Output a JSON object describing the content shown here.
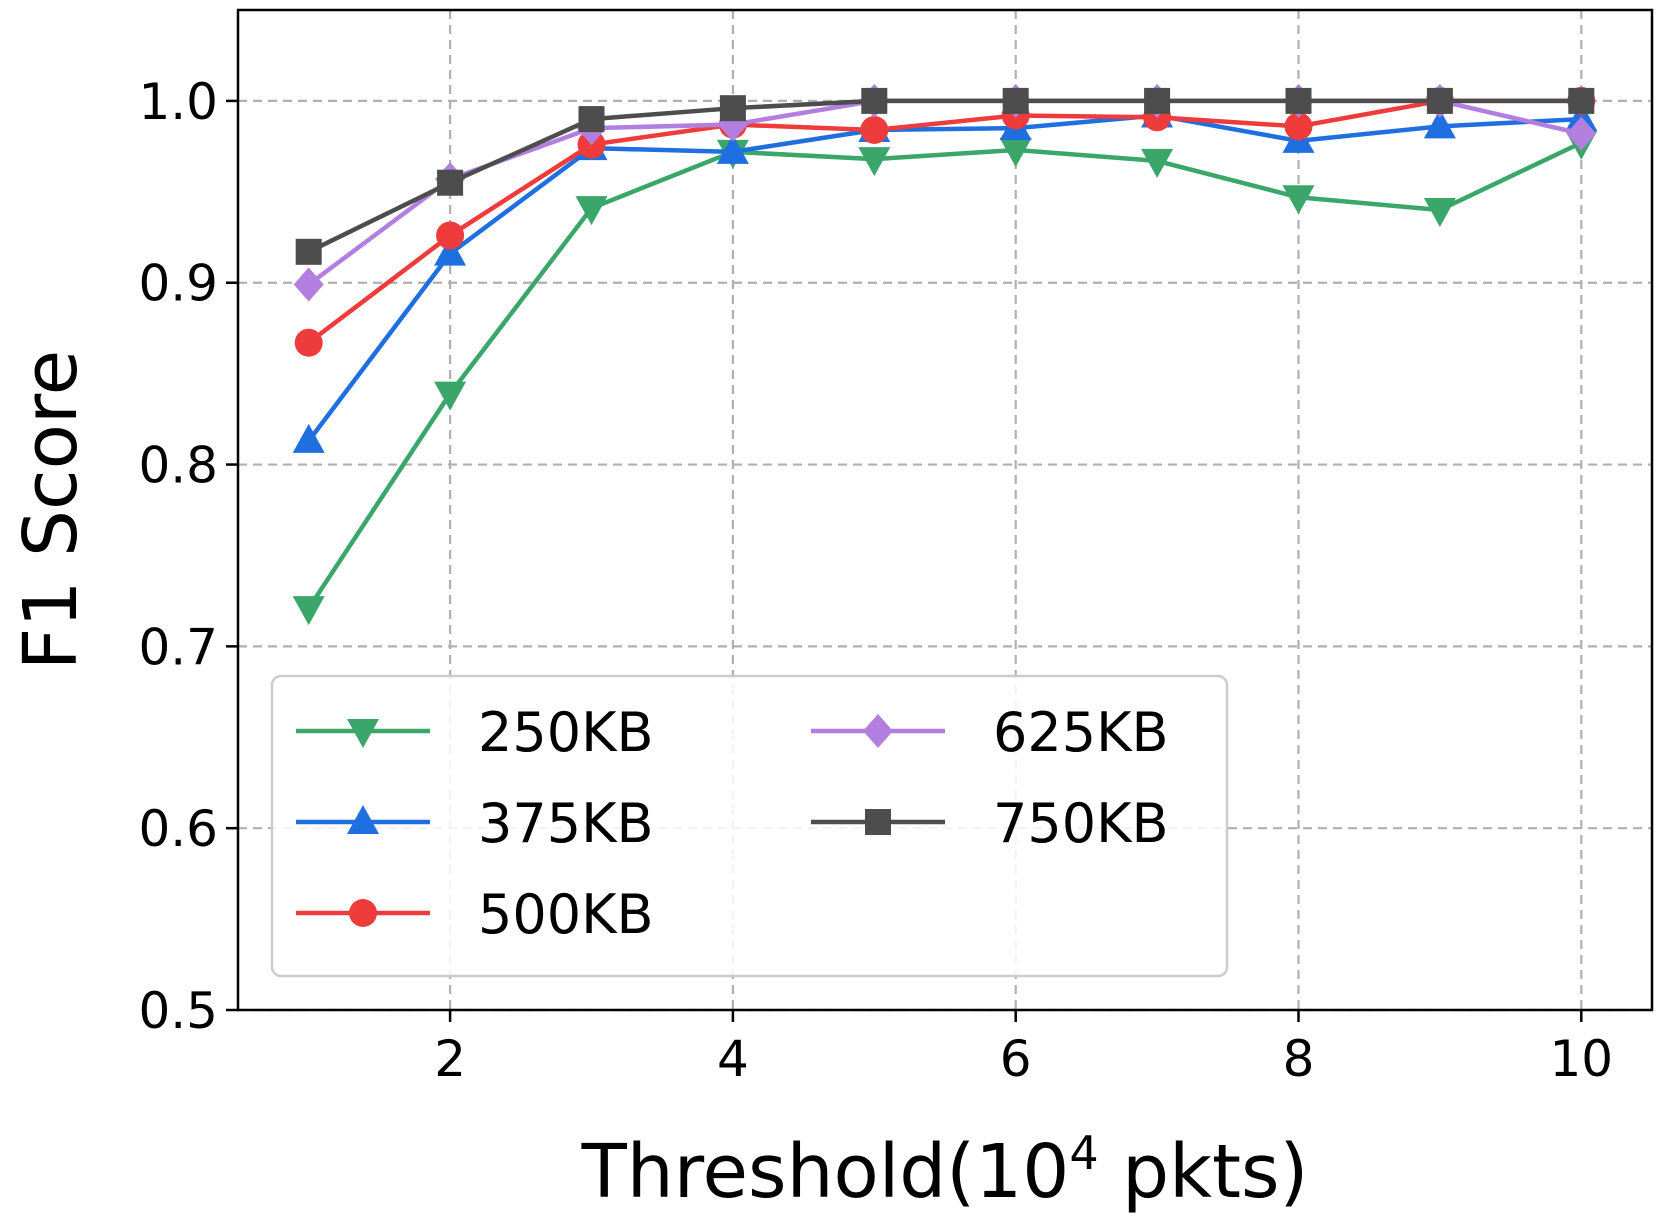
{
  "chart_data": {
    "type": "line",
    "title": "",
    "xlabel": "Threshold(10",
    "xlabel_superscript": "4",
    "xlabel_suffix": " pkts)",
    "ylabel": "F1 Score",
    "xlim": [
      0.5,
      10.5
    ],
    "ylim": [
      0.5,
      1.05
    ],
    "x_ticks": [
      2,
      4,
      6,
      8,
      10
    ],
    "x_tick_labels": [
      "2",
      "4",
      "6",
      "8",
      "10"
    ],
    "y_ticks": [
      0.5,
      0.6,
      0.7,
      0.8,
      0.9,
      1.0
    ],
    "y_tick_labels": [
      "0.5",
      "0.6",
      "0.7",
      "0.8",
      "0.9",
      "1.0"
    ],
    "grid": true,
    "legend_position": "lower-left",
    "legend_columns": 2,
    "x": [
      1,
      2,
      3,
      4,
      5,
      6,
      7,
      8,
      9,
      10
    ],
    "series": [
      {
        "name": "250KB",
        "color": "#3aa66a",
        "marker": "triangle-down",
        "values": [
          0.721,
          0.839,
          0.941,
          0.972,
          0.968,
          0.973,
          0.967,
          0.947,
          0.94,
          0.977
        ]
      },
      {
        "name": "375KB",
        "color": "#1f6fe0",
        "marker": "triangle-up",
        "values": [
          0.813,
          0.916,
          0.974,
          0.972,
          0.984,
          0.985,
          0.992,
          0.978,
          0.986,
          0.99
        ]
      },
      {
        "name": "500KB",
        "color": "#ee3b3b",
        "marker": "circle",
        "values": [
          0.867,
          0.926,
          0.976,
          0.987,
          0.984,
          0.992,
          0.991,
          0.986,
          1.0,
          1.0
        ]
      },
      {
        "name": "625KB",
        "color": "#b27ee0",
        "marker": "diamond",
        "values": [
          0.899,
          0.957,
          0.985,
          0.987,
          1.0,
          1.0,
          1.0,
          1.0,
          1.0,
          0.982
        ]
      },
      {
        "name": "750KB",
        "color": "#4d4d4d",
        "marker": "square",
        "values": [
          0.917,
          0.955,
          0.99,
          0.996,
          1.0,
          1.0,
          1.0,
          1.0,
          1.0,
          1.0
        ]
      }
    ]
  }
}
